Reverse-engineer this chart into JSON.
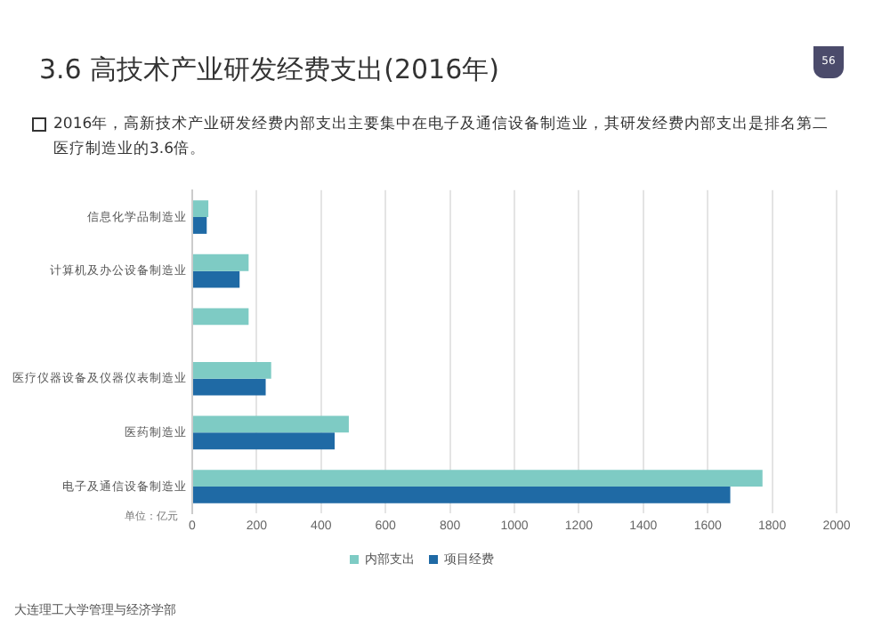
{
  "chart_data": {
    "type": "bar",
    "orientation": "horizontal",
    "title": "3.6  高技术产业研发经费支出(2016年)",
    "subtitle": "2016年，高新技术产业研发经费内部支出主要集中在电子及通信设备制造业，其研发经费内部支出是排名第二医疗制造业的3.6倍。",
    "categories": [
      "信息化学品制造业",
      "计算机及办公设备制造业",
      null,
      "医疗仪器设备及仪器仪表制造业",
      "医药制造业",
      "电子及通信设备制造业"
    ],
    "series": [
      {
        "name": "内部支出",
        "color": "#7ecbc4",
        "values": [
          50,
          175,
          175,
          245,
          486,
          1770
        ]
      },
      {
        "name": "项目经费",
        "color": "#1f6aa5",
        "values": [
          45,
          147,
          null,
          228,
          442,
          1670
        ]
      }
    ],
    "xlim": [
      0,
      2000
    ],
    "xticks": [
      0,
      200,
      400,
      600,
      800,
      1000,
      1200,
      1400,
      1600,
      1800,
      2000
    ],
    "grid": "x",
    "legend": "bottom",
    "annotations": [
      "单位：亿元",
      "大连理工大学管理与经济学部",
      "56"
    ]
  }
}
